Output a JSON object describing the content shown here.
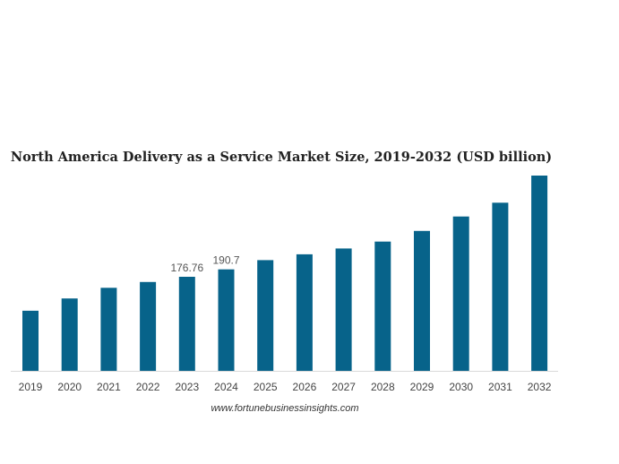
{
  "chart_data": {
    "type": "bar",
    "title": "North America Delivery as a Service Market Size, 2019-2032 (USD billion)",
    "xlabel": "",
    "ylabel": "",
    "categories": [
      "2019",
      "2020",
      "2021",
      "2022",
      "2023",
      "2024",
      "2025",
      "2026",
      "2027",
      "2028",
      "2029",
      "2030",
      "2031",
      "2032"
    ],
    "values": [
      113,
      136,
      156,
      167,
      176.76,
      190.7,
      208,
      219,
      230,
      243,
      263,
      290,
      316,
      367
    ],
    "data_labels": [
      {
        "category": "2023",
        "text": "176.76"
      },
      {
        "category": "2024",
        "text": "190.7"
      }
    ],
    "ylim": [
      0,
      367
    ],
    "grid": false,
    "legend": "none",
    "bar_color": "#07638a",
    "source": "www.fortunebusinessinsights.com"
  }
}
